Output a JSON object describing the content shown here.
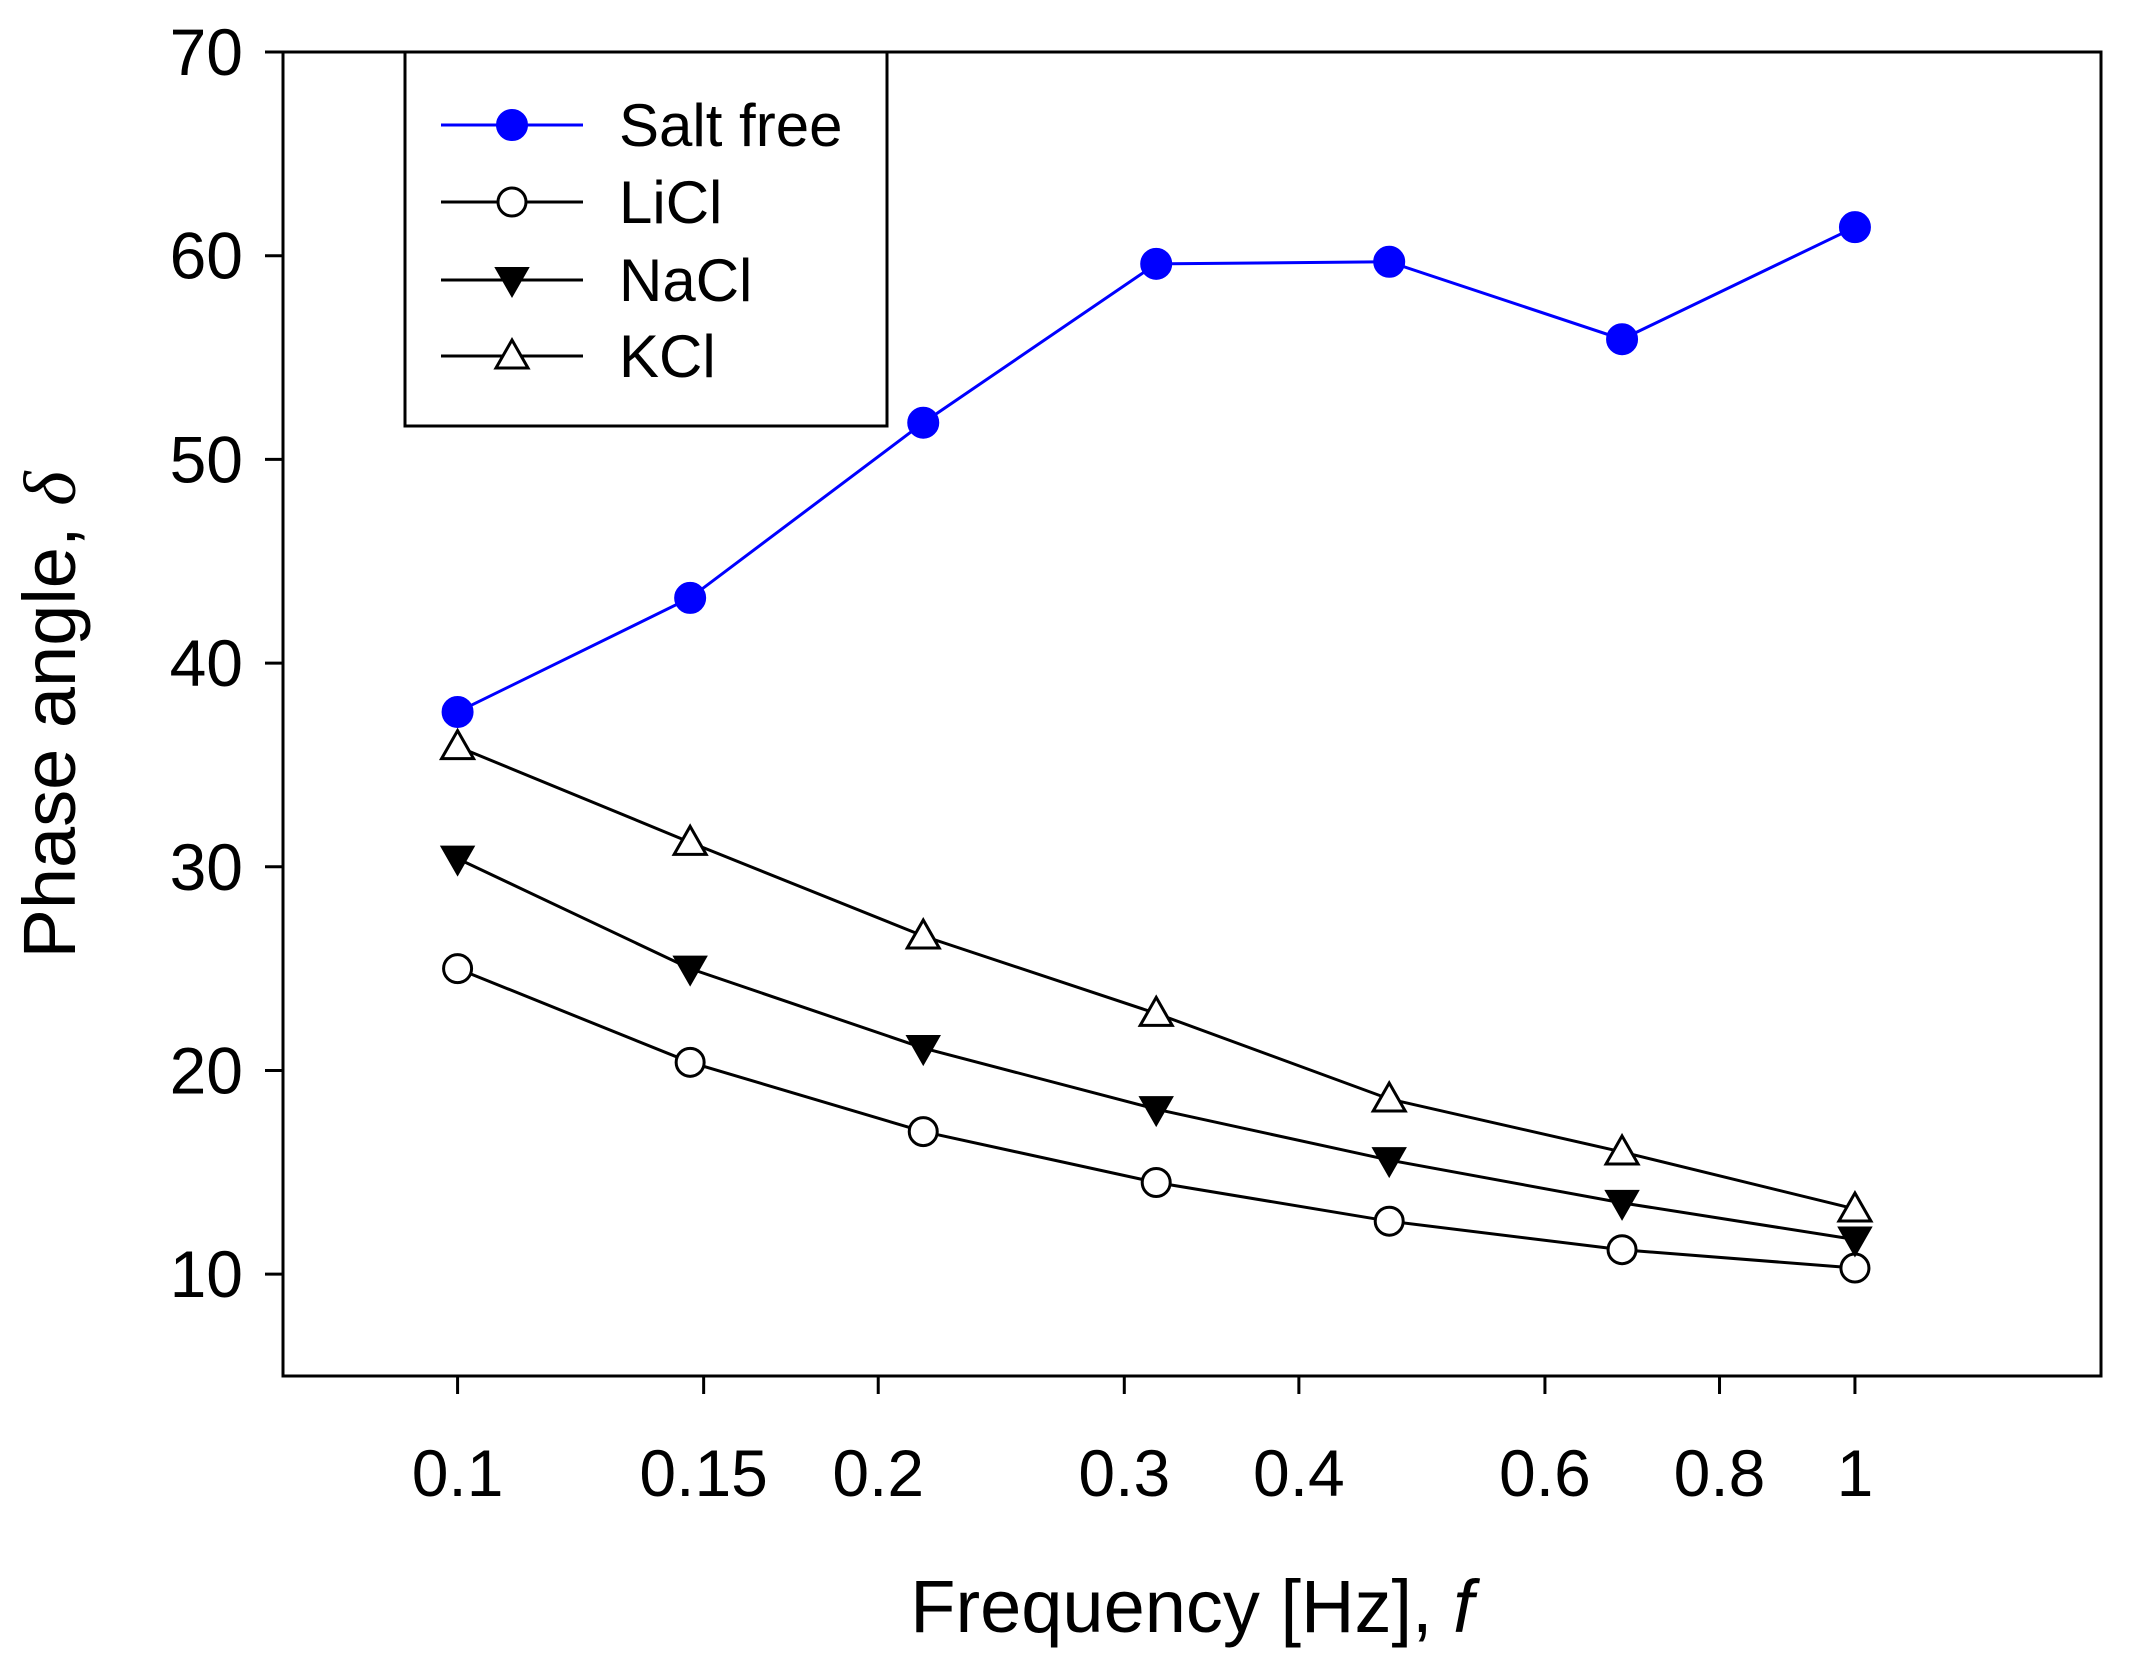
{
  "chart_data": {
    "type": "line",
    "xscale": "log",
    "xlabel": "Frequency [Hz], ",
    "xlabel_var": "f",
    "ylabel": "Phase angle, ",
    "ylabel_var": "δ",
    "xlim": [
      0.075,
      1.5
    ],
    "ylim": [
      5,
      70
    ],
    "yticks": [
      10,
      20,
      30,
      40,
      50,
      60,
      70
    ],
    "xticks": [
      0.1,
      0.15,
      0.2,
      0.3,
      0.4,
      0.6,
      0.8,
      1
    ],
    "xtick_labels": [
      "0.1",
      "0.15",
      "0.2",
      "0.3",
      "0.4",
      "0.6",
      "0.8",
      "1"
    ],
    "grid": false,
    "legend_position": "top-left",
    "x": [
      0.1,
      0.1467,
      0.2154,
      0.3162,
      0.4642,
      0.6813,
      1.0
    ],
    "series": [
      {
        "name": "Salt free",
        "marker": "filled-circle",
        "color": "#0000ff",
        "values": [
          37.6,
          43.2,
          51.8,
          59.6,
          59.7,
          55.9,
          61.4
        ]
      },
      {
        "name": "LiCl",
        "marker": "open-circle",
        "color": "#000000",
        "values": [
          25.0,
          20.4,
          17.0,
          14.5,
          12.6,
          11.2,
          10.3
        ]
      },
      {
        "name": "NaCl",
        "marker": "filled-triangle-down",
        "color": "#000000",
        "values": [
          30.4,
          25.0,
          21.1,
          18.1,
          15.6,
          13.5,
          11.7
        ]
      },
      {
        "name": "KCl",
        "marker": "open-triangle-up",
        "color": "#000000",
        "values": [
          35.9,
          31.2,
          26.6,
          22.8,
          18.6,
          16.0,
          13.2
        ]
      }
    ]
  }
}
